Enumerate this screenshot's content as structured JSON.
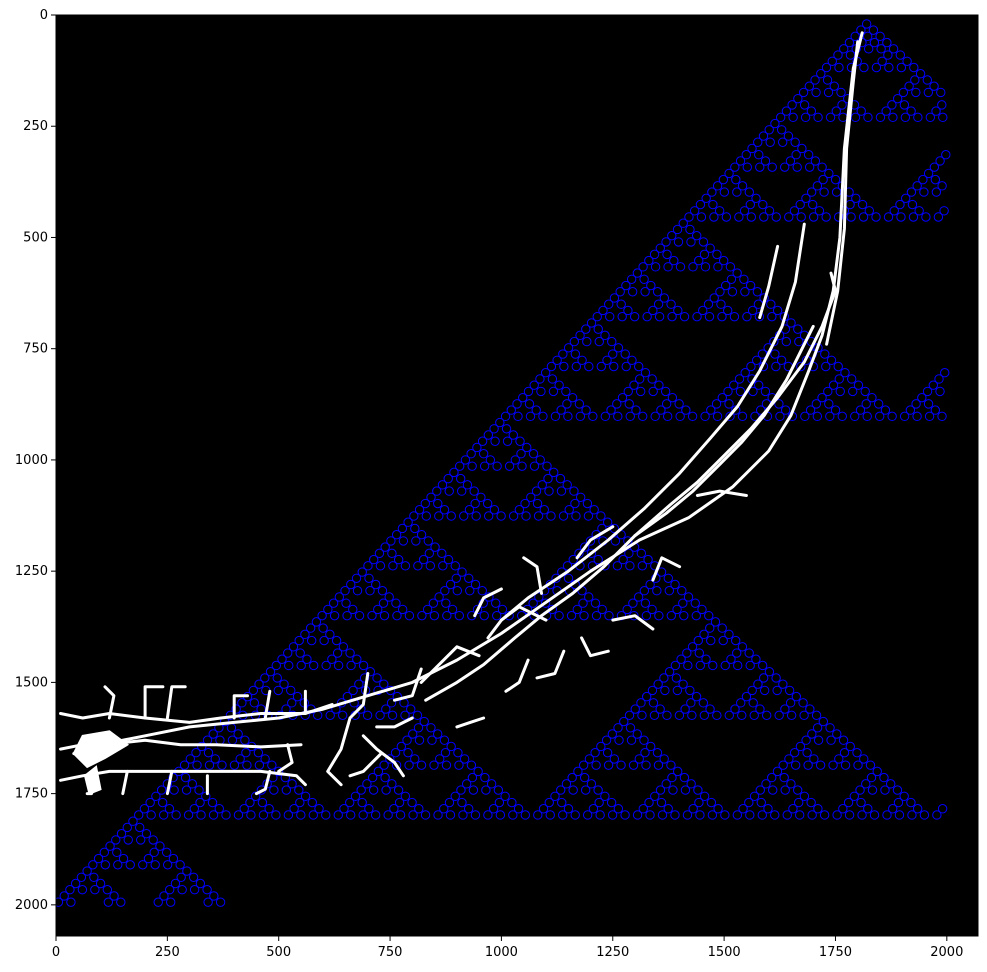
{
  "chart_data": {
    "type": "scatter",
    "title": "",
    "xlabel": "",
    "ylabel": "",
    "xlim": [
      0,
      2070
    ],
    "ylim": [
      2070,
      0
    ],
    "y_inverted": true,
    "x_ticks": [
      0,
      250,
      500,
      750,
      1000,
      1250,
      1500,
      1750,
      2000
    ],
    "y_ticks": [
      0,
      250,
      500,
      750,
      1000,
      1250,
      1500,
      1750,
      2000
    ],
    "grid": false,
    "legend": "none",
    "background_image": "binary mask: white neuron-like branching skeleton on black",
    "colors": {
      "image_background": "#000000",
      "skeleton": "#ffffff",
      "markers": "#0000ff"
    },
    "series": [
      {
        "marker": "open-circle",
        "color": "#0000ff",
        "pattern": "Sierpinski-triangle lattice of sample points below the diagonal from (0,2000) to (1820,20), x range 0–2000, y range 20–2000, step 14"
      }
    ],
    "skeleton_paths": [
      [
        [
          1810,
          40
        ],
        [
          1790,
          120
        ],
        [
          1770,
          300
        ],
        [
          1760,
          500
        ],
        [
          1745,
          620
        ],
        [
          1720,
          720
        ],
        [
          1690,
          800
        ],
        [
          1650,
          900
        ],
        [
          1600,
          980
        ],
        [
          1520,
          1060
        ],
        [
          1420,
          1130
        ],
        [
          1310,
          1180
        ],
        [
          1200,
          1250
        ],
        [
          1100,
          1320
        ],
        [
          1000,
          1390
        ],
        [
          900,
          1450
        ],
        [
          800,
          1500
        ],
        [
          700,
          1530
        ],
        [
          600,
          1560
        ],
        [
          500,
          1580
        ],
        [
          400,
          1590
        ],
        [
          300,
          1600
        ],
        [
          200,
          1620
        ],
        [
          100,
          1640
        ],
        [
          40,
          1660
        ]
      ],
      [
        [
          1800,
          60
        ],
        [
          1790,
          150
        ],
        [
          1775,
          300
        ],
        [
          1770,
          480
        ],
        [
          1755,
          620
        ],
        [
          1730,
          740
        ]
      ],
      [
        [
          1680,
          470
        ],
        [
          1660,
          600
        ],
        [
          1630,
          700
        ],
        [
          1580,
          800
        ],
        [
          1530,
          880
        ],
        [
          1470,
          950
        ],
        [
          1400,
          1030
        ],
        [
          1320,
          1110
        ],
        [
          1240,
          1180
        ],
        [
          1150,
          1250
        ],
        [
          1060,
          1310
        ],
        [
          1000,
          1360
        ]
      ],
      [
        [
          1620,
          520
        ],
        [
          1600,
          610
        ],
        [
          1580,
          680
        ]
      ],
      [
        [
          1740,
          580
        ],
        [
          1750,
          620
        ],
        [
          1720,
          700
        ],
        [
          1680,
          780
        ],
        [
          1620,
          860
        ],
        [
          1560,
          930
        ],
        [
          1500,
          990
        ],
        [
          1440,
          1050
        ],
        [
          1380,
          1100
        ],
        [
          1300,
          1170
        ],
        [
          1230,
          1240
        ],
        [
          1160,
          1300
        ],
        [
          1090,
          1350
        ],
        [
          1030,
          1400
        ],
        [
          960,
          1460
        ],
        [
          900,
          1500
        ],
        [
          830,
          1540
        ]
      ],
      [
        [
          1700,
          700
        ],
        [
          1680,
          740
        ],
        [
          1640,
          820
        ],
        [
          1590,
          900
        ],
        [
          1540,
          960
        ],
        [
          1490,
          1010
        ],
        [
          1430,
          1070
        ],
        [
          1370,
          1120
        ],
        [
          1300,
          1170
        ]
      ],
      [
        [
          1550,
          1080
        ],
        [
          1490,
          1070
        ],
        [
          1440,
          1080
        ]
      ],
      [
        [
          1400,
          1240
        ],
        [
          1360,
          1220
        ],
        [
          1340,
          1270
        ]
      ],
      [
        [
          1340,
          1380
        ],
        [
          1300,
          1350
        ],
        [
          1250,
          1360
        ]
      ],
      [
        [
          1250,
          1150
        ],
        [
          1200,
          1180
        ],
        [
          1170,
          1220
        ]
      ],
      [
        [
          1100,
          1360
        ],
        [
          1040,
          1330
        ],
        [
          1000,
          1360
        ],
        [
          970,
          1400
        ]
      ],
      [
        [
          1090,
          1300
        ],
        [
          1080,
          1240
        ],
        [
          1050,
          1220
        ]
      ],
      [
        [
          1000,
          1290
        ],
        [
          960,
          1310
        ],
        [
          940,
          1350
        ]
      ],
      [
        [
          950,
          1440
        ],
        [
          900,
          1420
        ],
        [
          860,
          1460
        ],
        [
          820,
          1500
        ]
      ],
      [
        [
          820,
          1470
        ],
        [
          800,
          1530
        ],
        [
          760,
          1540
        ]
      ],
      [
        [
          700,
          1480
        ],
        [
          690,
          1550
        ],
        [
          660,
          1580
        ],
        [
          640,
          1650
        ],
        [
          610,
          1700
        ],
        [
          640,
          1730
        ]
      ],
      [
        [
          690,
          1620
        ],
        [
          720,
          1650
        ],
        [
          760,
          1680
        ],
        [
          780,
          1710
        ]
      ],
      [
        [
          730,
          1660
        ],
        [
          690,
          1700
        ],
        [
          660,
          1710
        ]
      ],
      [
        [
          620,
          1550
        ],
        [
          560,
          1570
        ],
        [
          460,
          1570
        ],
        [
          370,
          1580
        ],
        [
          300,
          1590
        ],
        [
          200,
          1580
        ],
        [
          120,
          1570
        ],
        [
          60,
          1580
        ],
        [
          10,
          1570
        ]
      ],
      [
        [
          10,
          1650
        ],
        [
          60,
          1640
        ],
        [
          110,
          1640
        ],
        [
          200,
          1630
        ],
        [
          280,
          1640
        ],
        [
          360,
          1640
        ],
        [
          460,
          1645
        ],
        [
          550,
          1640
        ]
      ],
      [
        [
          10,
          1720
        ],
        [
          60,
          1710
        ],
        [
          120,
          1700
        ],
        [
          200,
          1700
        ],
        [
          300,
          1700
        ],
        [
          380,
          1700
        ],
        [
          460,
          1700
        ],
        [
          540,
          1710
        ],
        [
          560,
          1730
        ]
      ],
      [
        [
          120,
          1580
        ],
        [
          130,
          1530
        ],
        [
          110,
          1510
        ]
      ],
      [
        [
          200,
          1580
        ],
        [
          200,
          1510
        ],
        [
          240,
          1510
        ]
      ],
      [
        [
          250,
          1580
        ],
        [
          260,
          1510
        ],
        [
          290,
          1510
        ]
      ],
      [
        [
          400,
          1580
        ],
        [
          400,
          1530
        ],
        [
          430,
          1530
        ]
      ],
      [
        [
          470,
          1580
        ],
        [
          480,
          1520
        ]
      ],
      [
        [
          560,
          1570
        ],
        [
          560,
          1520
        ]
      ],
      [
        [
          520,
          1640
        ],
        [
          530,
          1680
        ],
        [
          500,
          1700
        ]
      ],
      [
        [
          480,
          1700
        ],
        [
          470,
          1740
        ],
        [
          450,
          1750
        ]
      ],
      [
        [
          340,
          1710
        ],
        [
          340,
          1750
        ]
      ],
      [
        [
          260,
          1700
        ],
        [
          250,
          1750
        ]
      ],
      [
        [
          160,
          1700
        ],
        [
          150,
          1750
        ]
      ],
      [
        [
          90,
          1700
        ],
        [
          80,
          1750
        ],
        [
          70,
          1750
        ]
      ],
      [
        [
          720,
          1600
        ],
        [
          760,
          1600
        ],
        [
          800,
          1580
        ]
      ],
      [
        [
          900,
          1600
        ],
        [
          930,
          1590
        ],
        [
          960,
          1580
        ]
      ],
      [
        [
          1180,
          1400
        ],
        [
          1200,
          1440
        ],
        [
          1240,
          1430
        ]
      ],
      [
        [
          1140,
          1430
        ],
        [
          1120,
          1480
        ],
        [
          1080,
          1490
        ]
      ],
      [
        [
          1060,
          1450
        ],
        [
          1040,
          1500
        ],
        [
          1010,
          1520
        ]
      ]
    ],
    "skeleton_blobs": [
      [
        [
          60,
          1620
        ],
        [
          120,
          1610
        ],
        [
          160,
          1640
        ],
        [
          110,
          1670
        ],
        [
          70,
          1690
        ],
        [
          40,
          1660
        ]
      ],
      [
        [
          90,
          1690
        ],
        [
          100,
          1740
        ],
        [
          75,
          1750
        ],
        [
          65,
          1710
        ]
      ]
    ]
  }
}
